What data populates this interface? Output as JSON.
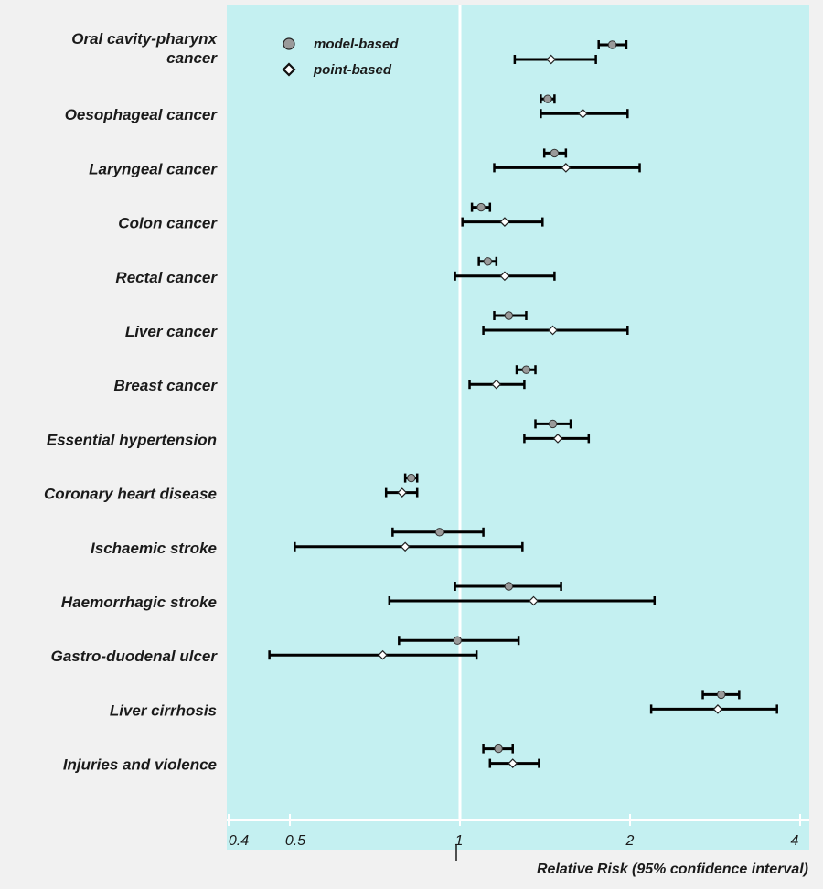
{
  "chart_data": {
    "type": "forest",
    "xlabel": "Relative Risk (95% confidence interval)",
    "xscale": "log",
    "xlim": [
      0.38,
      4.2
    ],
    "xticks": [
      0.4,
      0.5,
      1,
      2,
      4
    ],
    "xtick_labels": [
      "0.4",
      "0.5",
      "1",
      "2",
      "4"
    ],
    "reference_line": 1,
    "legend": {
      "position": "top-left",
      "entries": [
        {
          "label": "model-based",
          "marker": "circle"
        },
        {
          "label": "point-based",
          "marker": "diamond"
        }
      ]
    },
    "categories": [
      [
        "Oral cavity-pharynx",
        "cancer"
      ],
      [
        "Oesophageal cancer"
      ],
      [
        "Laryngeal cancer"
      ],
      [
        "Colon cancer"
      ],
      [
        "Rectal cancer"
      ],
      [
        "Liver cancer"
      ],
      [
        "Breast cancer"
      ],
      [
        "Essential hypertension"
      ],
      [
        "Coronary heart disease"
      ],
      [
        "Ischaemic stroke"
      ],
      [
        "Haemorrhagic stroke"
      ],
      [
        "Gastro-duodenal ulcer"
      ],
      [
        "Liver cirrhosis"
      ],
      [
        "Injuries and violence"
      ]
    ],
    "series": [
      {
        "name": "model-based",
        "marker": "circle",
        "values": [
          {
            "rr": 1.86,
            "lo": 1.76,
            "hi": 1.97
          },
          {
            "rr": 1.43,
            "lo": 1.39,
            "hi": 1.47
          },
          {
            "rr": 1.47,
            "lo": 1.41,
            "hi": 1.54
          },
          {
            "rr": 1.09,
            "lo": 1.05,
            "hi": 1.13
          },
          {
            "rr": 1.12,
            "lo": 1.08,
            "hi": 1.16
          },
          {
            "rr": 1.22,
            "lo": 1.15,
            "hi": 1.31
          },
          {
            "rr": 1.31,
            "lo": 1.26,
            "hi": 1.36
          },
          {
            "rr": 1.46,
            "lo": 1.36,
            "hi": 1.57
          },
          {
            "rr": 0.82,
            "lo": 0.8,
            "hi": 0.84
          },
          {
            "rr": 0.92,
            "lo": 0.76,
            "hi": 1.1
          },
          {
            "rr": 1.22,
            "lo": 0.98,
            "hi": 1.51
          },
          {
            "rr": 0.99,
            "lo": 0.78,
            "hi": 1.27
          },
          {
            "rr": 2.9,
            "lo": 2.69,
            "hi": 3.12
          },
          {
            "rr": 1.17,
            "lo": 1.1,
            "hi": 1.24
          }
        ]
      },
      {
        "name": "point-based",
        "marker": "diamond",
        "values": [
          {
            "rr": 1.45,
            "lo": 1.25,
            "hi": 1.74
          },
          {
            "rr": 1.65,
            "lo": 1.39,
            "hi": 1.98
          },
          {
            "rr": 1.54,
            "lo": 1.15,
            "hi": 2.08
          },
          {
            "rr": 1.2,
            "lo": 1.01,
            "hi": 1.4
          },
          {
            "rr": 1.2,
            "lo": 0.98,
            "hi": 1.47
          },
          {
            "rr": 1.46,
            "lo": 1.1,
            "hi": 1.98
          },
          {
            "rr": 1.16,
            "lo": 1.04,
            "hi": 1.3
          },
          {
            "rr": 1.49,
            "lo": 1.3,
            "hi": 1.69
          },
          {
            "rr": 0.79,
            "lo": 0.74,
            "hi": 0.84
          },
          {
            "rr": 0.8,
            "lo": 0.51,
            "hi": 1.29
          },
          {
            "rr": 1.35,
            "lo": 0.75,
            "hi": 2.21
          },
          {
            "rr": 0.73,
            "lo": 0.46,
            "hi": 1.07
          },
          {
            "rr": 2.86,
            "lo": 2.18,
            "hi": 3.64
          },
          {
            "rr": 1.24,
            "lo": 1.13,
            "hi": 1.38
          }
        ]
      }
    ]
  },
  "colors": {
    "panel": "#c4f0f1",
    "background": "#f1f1f1",
    "reference_line": "#ffffff",
    "model_marker": "#9a9a9a",
    "point_marker": "#ffffff",
    "ci_line": "#000000"
  }
}
